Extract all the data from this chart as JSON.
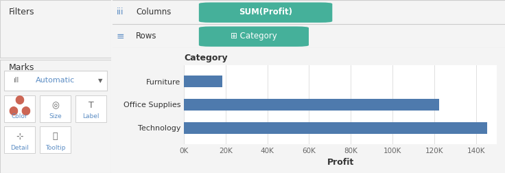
{
  "categories": [
    "Furniture",
    "Office Supplies",
    "Technology"
  ],
  "values": [
    18450,
    122490,
    145454
  ],
  "bar_color": "#4e7aad",
  "bar_height": 0.5,
  "xlabel": "Profit",
  "xlim": [
    0,
    150000
  ],
  "xticks": [
    0,
    20000,
    40000,
    60000,
    80000,
    100000,
    120000,
    140000
  ],
  "xtick_labels": [
    "0K",
    "20K",
    "40K",
    "60K",
    "80K",
    "100K",
    "120K",
    "140K"
  ],
  "chart_title": "Category",
  "bg_gray": "#f4f4f4",
  "bg_white": "#ffffff",
  "bg_mid": "#ebebeb",
  "grid_color": "#e0e0e0",
  "sep_color": "#cccccc",
  "left_panel_bg": "#f4f4f4",
  "filters_text": "Filters",
  "marks_text": "Marks",
  "automatic_text": "Automatic",
  "color_text": "Color",
  "size_text": "Size",
  "label_text": "Label",
  "detail_text": "Detail",
  "tooltip_text": "Tooltip",
  "col_label": "Columns",
  "row_label": "Rows",
  "col_pill_text": "SUM(Profit)",
  "row_pill_text": "⊞ Category",
  "pill_bg": "#45b09a",
  "pill_text_color": "#ffffff",
  "header_icon_color": "#5c8dc4",
  "text_dark": "#333333",
  "text_mid": "#666666",
  "text_blue": "#5c8dc4",
  "panel_border": "#d0d0d0"
}
